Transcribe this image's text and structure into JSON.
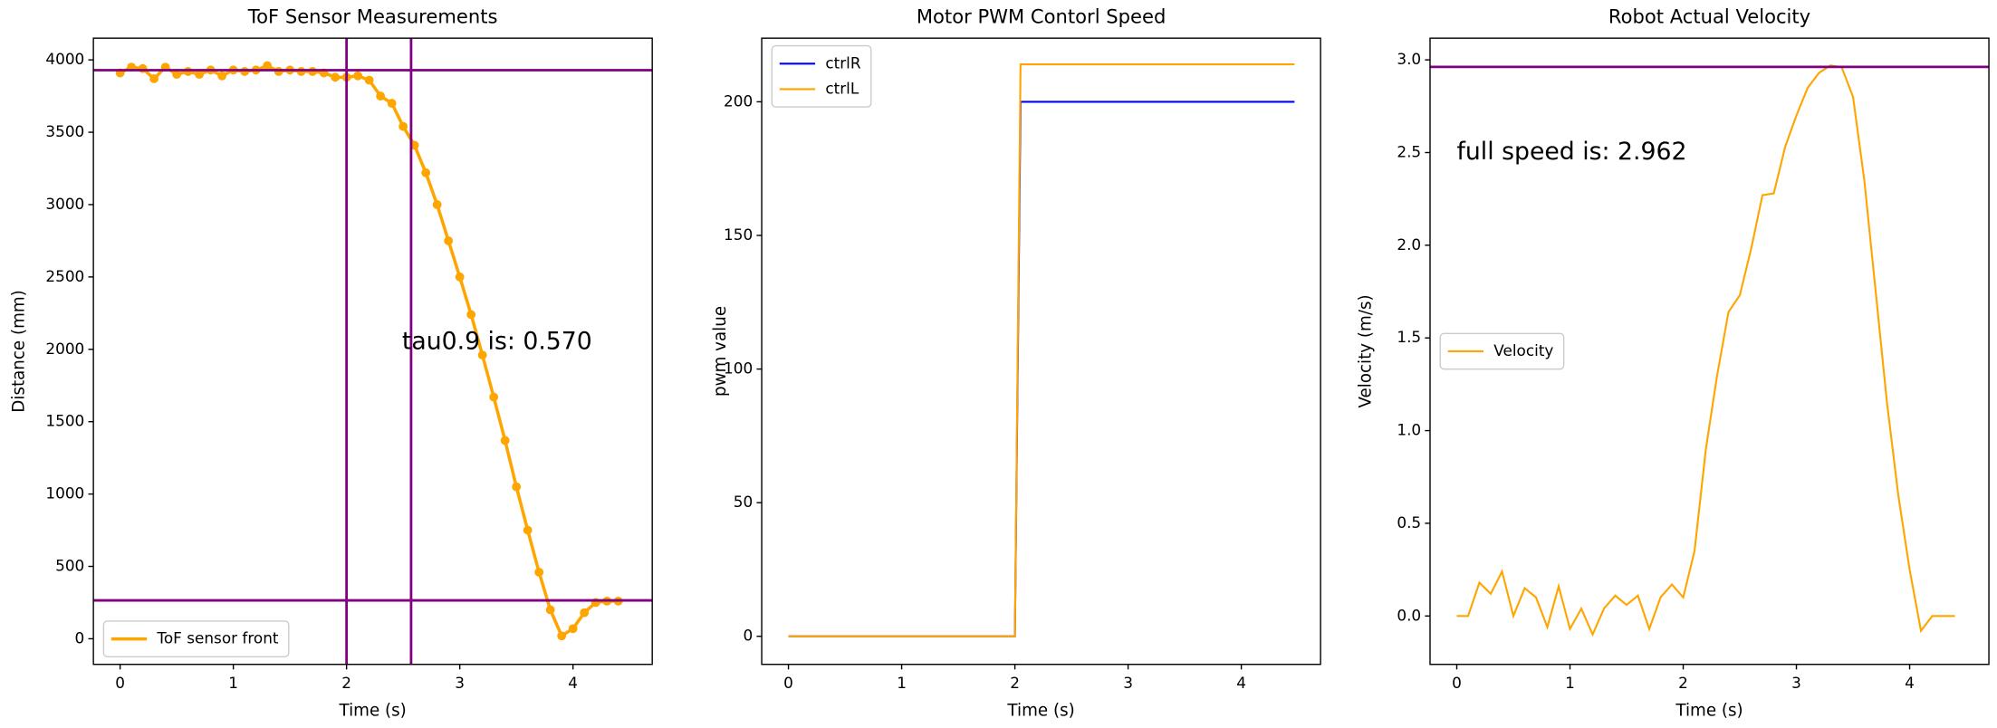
{
  "chart_data": [
    {
      "type": "line",
      "title": "ToF Sensor Measurements",
      "xlabel": "Time (s)",
      "ylabel": "Distance (mm)",
      "xlim": [
        -0.236,
        4.7
      ],
      "ylim": [
        -177,
        4150
      ],
      "xticks": [
        0,
        1,
        2,
        3,
        4
      ],
      "yticks": [
        0,
        500,
        1000,
        1500,
        2000,
        2500,
        3000,
        3500,
        4000
      ],
      "legend": "lower left",
      "markers": true,
      "x": [
        0,
        0.1,
        0.2,
        0.3,
        0.4,
        0.5,
        0.6,
        0.7,
        0.8,
        0.9,
        1.0,
        1.1,
        1.2,
        1.3,
        1.4,
        1.5,
        1.6,
        1.7,
        1.8,
        1.9,
        2.0,
        2.1,
        2.2,
        2.3,
        2.4,
        2.5,
        2.6,
        2.7,
        2.8,
        2.9,
        3.0,
        3.1,
        3.2,
        3.3,
        3.4,
        3.5,
        3.6,
        3.7,
        3.8,
        3.9,
        4.0,
        4.1,
        4.2,
        4.3,
        4.4
      ],
      "series": [
        {
          "name": "ToF sensor front",
          "color": "#ffa500",
          "values": [
            3910,
            3950,
            3940,
            3870,
            3950,
            3900,
            3920,
            3900,
            3930,
            3890,
            3930,
            3920,
            3930,
            3960,
            3920,
            3930,
            3920,
            3920,
            3910,
            3880,
            3880,
            3890,
            3860,
            3750,
            3700,
            3540,
            3410,
            3220,
            3000,
            2750,
            2500,
            2240,
            1960,
            1670,
            1370,
            1050,
            750,
            460,
            200,
            20,
            70,
            180,
            250,
            260,
            260
          ]
        }
      ],
      "hlines": [
        {
          "value": 3929,
          "color": "#800080"
        },
        {
          "value": 265,
          "color": "#800080"
        }
      ],
      "vlines": [
        {
          "value": 2.0,
          "color": "#800080"
        },
        {
          "value": 2.57,
          "color": "#800080"
        }
      ],
      "annotations": [
        {
          "text": "tau0.9 is: 0.570",
          "x": 2.49,
          "y": 2050,
          "color": "#800080"
        }
      ]
    },
    {
      "type": "line",
      "title": "Motor PWM Contorl Speed",
      "xlabel": "Time (s)",
      "ylabel": "pwm value",
      "xlim": [
        -0.236,
        4.7
      ],
      "ylim": [
        -10.5,
        223.8
      ],
      "xticks": [
        0,
        1,
        2,
        3,
        4
      ],
      "yticks": [
        0,
        50,
        100,
        150,
        200
      ],
      "legend": "upper left",
      "x": [
        0,
        2.0,
        2.05,
        4.47
      ],
      "series": [
        {
          "name": "ctrlR",
          "color": "#0000ff",
          "values": [
            0,
            0,
            200,
            200
          ]
        },
        {
          "name": "ctrlL",
          "color": "#ffa500",
          "values": [
            0,
            0,
            214,
            214
          ]
        }
      ]
    },
    {
      "type": "line",
      "title": "Robot Actual Velocity",
      "xlabel": "Time (s)",
      "ylabel": "Velocity (m/s)",
      "xlim": [
        -0.236,
        4.7
      ],
      "ylim": [
        -0.261,
        3.117
      ],
      "xticks": [
        0,
        1,
        2,
        3,
        4
      ],
      "yticks": [
        {
          "value": 0,
          "label": "0.0"
        },
        0.5,
        {
          "value": 1,
          "label": "1.0"
        },
        1.5,
        {
          "value": 2,
          "label": "2.0"
        },
        2.5,
        {
          "value": 3,
          "label": "3.0"
        }
      ],
      "legend": "center left",
      "x": [
        0,
        0.1,
        0.2,
        0.3,
        0.4,
        0.5,
        0.6,
        0.7,
        0.8,
        0.9,
        1.0,
        1.1,
        1.2,
        1.3,
        1.4,
        1.5,
        1.6,
        1.7,
        1.8,
        1.9,
        2.0,
        2.1,
        2.2,
        2.3,
        2.4,
        2.5,
        2.6,
        2.7,
        2.8,
        2.9,
        3.0,
        3.1,
        3.2,
        3.3,
        3.4,
        3.5,
        3.6,
        3.7,
        3.8,
        3.9,
        4.0,
        4.1,
        4.2,
        4.3,
        4.4
      ],
      "series": [
        {
          "name": "Velocity",
          "color": "#ffa500",
          "values": [
            0,
            0,
            0.18,
            0.12,
            0.24,
            0.0,
            0.15,
            0.1,
            -0.06,
            0.16,
            -0.07,
            0.04,
            -0.1,
            0.04,
            0.11,
            0.06,
            0.11,
            -0.07,
            0.1,
            0.17,
            0.1,
            0.35,
            0.9,
            1.3,
            1.64,
            1.73,
            1.98,
            2.27,
            2.28,
            2.53,
            2.7,
            2.85,
            2.93,
            2.97,
            2.96,
            2.8,
            2.35,
            1.75,
            1.15,
            0.65,
            0.25,
            -0.08,
            0,
            0,
            0
          ]
        }
      ],
      "hlines": [
        {
          "value": 2.962,
          "color": "#800080"
        }
      ],
      "annotations": [
        {
          "text": "full speed is: 2.962",
          "x": 0,
          "y": 2.5,
          "color": "#800080"
        }
      ]
    }
  ]
}
